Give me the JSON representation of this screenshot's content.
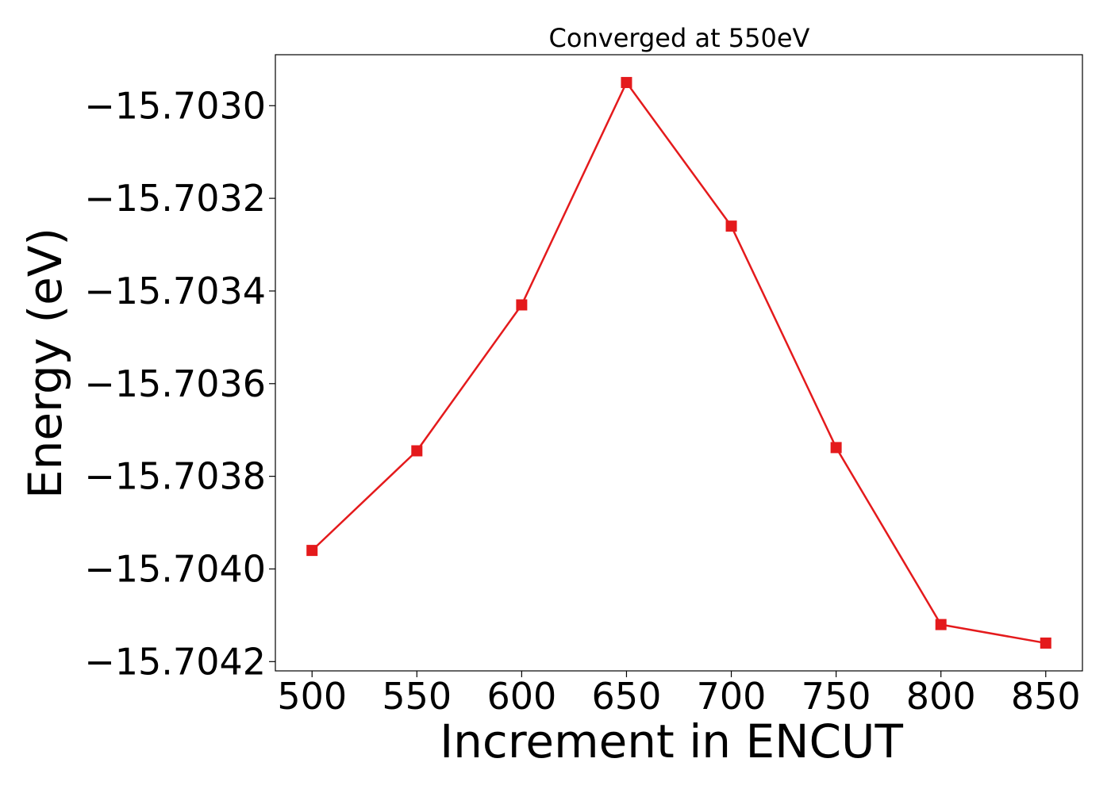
{
  "chart_data": {
    "type": "line",
    "title": "Converged at 550eV",
    "xlabel": "Increment in ENCUT",
    "ylabel": "Energy (eV)",
    "x": [
      500,
      550,
      600,
      650,
      700,
      750,
      800,
      850
    ],
    "series": [
      {
        "values": [
          -15.70396,
          -15.703745,
          -15.70343,
          -15.70295,
          -15.70326,
          -15.703738,
          -15.70412,
          -15.70416
        ],
        "color": "#e41a1c",
        "marker": "square"
      }
    ],
    "xticks": [
      500,
      550,
      600,
      650,
      700,
      750,
      800,
      850
    ],
    "xtick_labels": [
      "500",
      "550",
      "600",
      "650",
      "700",
      "750",
      "800",
      "850"
    ],
    "yticks": [
      -15.703,
      -15.7032,
      -15.7034,
      -15.7036,
      -15.7038,
      -15.704,
      -15.7042
    ],
    "ytick_labels": [
      "−15.7030",
      "−15.7032",
      "−15.7034",
      "−15.7036",
      "−15.7038",
      "−15.7040",
      "−15.7042"
    ],
    "xlim": [
      482.5,
      867.5
    ],
    "ylim": [
      -15.70422,
      -15.70289
    ],
    "grid": false,
    "legend": "none"
  }
}
